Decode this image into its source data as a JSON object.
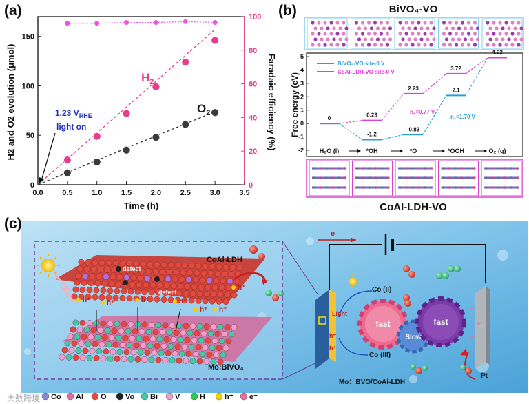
{
  "panel_labels": {
    "a": "(a)",
    "b": "(b)",
    "c": "(c)"
  },
  "panel_a": {
    "chart_data": {
      "type": "scatter",
      "xlabel": "Time (h)",
      "ylabel_left": "H2 and O2 evolution (μmol)",
      "ylabel_right": "Faradaic efficiency (%)",
      "xlim": [
        0.0,
        3.5
      ],
      "ylim_left": [
        0,
        170
      ],
      "ylim_right": [
        0,
        100
      ],
      "x_ticks": [
        "0.0",
        "0.5",
        "1.0",
        "1.5",
        "2.0",
        "2.5",
        "3.0",
        "3.5"
      ],
      "y_ticks_left": [
        "0",
        "50",
        "100",
        "150"
      ],
      "y_ticks_right": [
        "0",
        "20",
        "40",
        "60",
        "80",
        "100"
      ],
      "series": [
        {
          "name": "H2",
          "label": "H",
          "label_sub": "2",
          "color": "#e83c8c",
          "x": [
            0.5,
            1.0,
            1.5,
            2.0,
            2.5,
            3.0
          ],
          "y": [
            25,
            49,
            72,
            99,
            124,
            146
          ],
          "fit_end": [
            3.0,
            157
          ]
        },
        {
          "name": "O2",
          "label": "O",
          "label_sub": "2",
          "color": "#3a3a3a",
          "x": [
            0.5,
            1.0,
            1.5,
            2.0,
            2.5,
            3.0
          ],
          "y": [
            12,
            23,
            35,
            48,
            61,
            73
          ],
          "fit_end": [
            3.0,
            74
          ]
        },
        {
          "name": "Faradaic efficiency",
          "color": "#ee55dd",
          "x": [
            0.5,
            1.0,
            1.5,
            2.0,
            2.5,
            3.0
          ],
          "y_right": [
            96,
            96,
            96.5,
            96.5,
            97,
            96.5
          ]
        }
      ],
      "annotation": {
        "line1": "1.23 V",
        "line1_sub": "RHE",
        "line2": "light on"
      }
    }
  },
  "panel_b": {
    "top_title": "BiVO₄-VO",
    "bottom_title": "CoAl-LDH-VO",
    "chart_data": {
      "type": "line",
      "ylabel": "Free energy (eV)",
      "ylim": [
        -2,
        5
      ],
      "y_ticks": [
        "-2",
        "-1",
        "0",
        "1",
        "2",
        "3",
        "4",
        "5"
      ],
      "steps": [
        "H₂O (l)",
        "*OH",
        "*O",
        "*OOH",
        "O₂ (g)"
      ],
      "series": [
        {
          "name": "BiVO₄-VO site-0 V",
          "color": "#2a9fd6",
          "values": [
            0,
            -1.2,
            -0.83,
            2.1,
            4.92
          ]
        },
        {
          "name": "CoAl-LDH-VO site-0 V",
          "color": "#e040d0",
          "values": [
            0,
            0.23,
            2.23,
            3.72,
            4.92
          ]
        }
      ],
      "value_labels": [
        "0",
        "-1.2",
        "0.23",
        "-0.83",
        "2.23",
        "2.1",
        "3.72",
        "4.92"
      ],
      "overpotentials": [
        {
          "text": "η₂=0.77 V",
          "color": "#e040d0"
        },
        {
          "text": "η₁=1.70 V",
          "color": "#2a9fd6"
        }
      ]
    }
  },
  "panel_c": {
    "left_labels": {
      "ldh": "CoAl-LDH",
      "bivo4": "Mo:BiVO₄",
      "defect1": "defect",
      "defect2": "defect",
      "hplus": "h⁺"
    },
    "right_labels": {
      "electron": "e⁻",
      "light": "Light",
      "co2": "Co (II)",
      "co3": "Co (III)",
      "fast1": "fast",
      "slow": "Slow",
      "fast2": "fast",
      "pt": "Pt",
      "device": "Mo：BVO/CoAl-LDH",
      "hplus": "h⁺",
      "eminus": "e⁻"
    },
    "legend": [
      {
        "label": "Co",
        "color": "#8a86d8"
      },
      {
        "label": "Al",
        "color": "#e66aa8"
      },
      {
        "label": "O",
        "color": "#e8463c"
      },
      {
        "label": "Vo",
        "color": "#222222",
        "sub": "O"
      },
      {
        "label": "Bi",
        "color": "#43c9a4"
      },
      {
        "label": "V",
        "color": "#f0a0c8"
      },
      {
        "label": "H",
        "color": "#2ecc4a"
      },
      {
        "label": "h⁺",
        "color": "#f4d000"
      },
      {
        "label": "e⁻",
        "color": "#e870a0"
      }
    ],
    "watermark": "大数跨境"
  }
}
